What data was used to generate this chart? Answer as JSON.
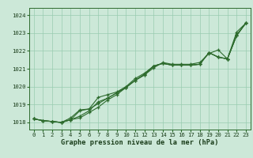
{
  "x": [
    0,
    1,
    2,
    3,
    4,
    5,
    6,
    7,
    8,
    9,
    10,
    11,
    12,
    13,
    14,
    15,
    16,
    17,
    18,
    19,
    20,
    21,
    22,
    23
  ],
  "line1": [
    1018.2,
    1018.1,
    1018.05,
    1018.0,
    1018.15,
    1018.25,
    1018.55,
    1018.85,
    1019.25,
    1019.55,
    1019.95,
    1020.35,
    1020.65,
    1021.05,
    1021.35,
    1021.25,
    1021.25,
    1021.25,
    1021.35,
    1021.85,
    1022.05,
    1021.55,
    1023.05,
    1023.55
  ],
  "line2": [
    1018.2,
    1018.1,
    1018.05,
    1018.0,
    1018.15,
    1018.35,
    1018.65,
    1019.15,
    1019.35,
    1019.65,
    1019.95,
    1020.35,
    1020.65,
    1021.15,
    1021.3,
    1021.2,
    1021.2,
    1021.2,
    1021.25,
    1021.9,
    1021.65,
    1021.55,
    1022.9,
    1023.55
  ],
  "line3": [
    1018.2,
    1018.1,
    1018.05,
    1018.0,
    1018.15,
    1018.65,
    1018.75,
    1019.05,
    1019.35,
    1019.65,
    1019.95,
    1020.35,
    1020.7,
    1021.15,
    1021.3,
    1021.2,
    1021.2,
    1021.2,
    1021.25,
    1021.9,
    1021.65,
    1021.55,
    1022.85,
    1023.55
  ],
  "line4": [
    1018.2,
    1018.1,
    1018.05,
    1018.0,
    1018.25,
    1018.7,
    1018.75,
    1019.4,
    1019.55,
    1019.7,
    1020.0,
    1020.45,
    1020.75,
    1021.15,
    1021.3,
    1021.2,
    1021.2,
    1021.2,
    1021.25,
    1021.9,
    1021.65,
    1021.55,
    1022.85,
    1023.55
  ],
  "bg_color": "#cce8d8",
  "grid_color": "#99ccb0",
  "line_color": "#2d6b2d",
  "xlabel": "Graphe pression niveau de la mer (hPa)",
  "ylabel_vals": [
    1018,
    1019,
    1020,
    1021,
    1022,
    1023,
    1024
  ],
  "ylim": [
    1017.6,
    1024.4
  ],
  "xlim": [
    -0.5,
    23.5
  ],
  "tick_fontsize": 5.2,
  "xlabel_fontsize": 6.2
}
